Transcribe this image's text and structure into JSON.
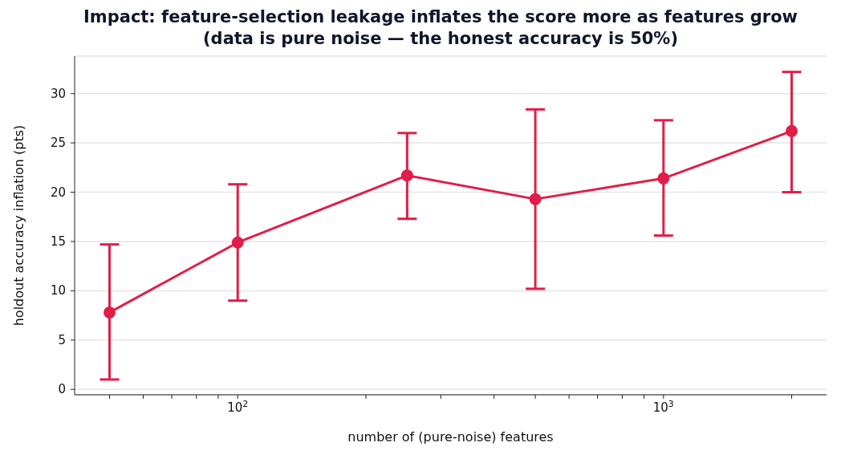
{
  "chart_data": {
    "type": "line",
    "title": "Impact: feature-selection leakage inflates the score more as features grow\n(data is pure noise — the honest accuracy is 50%)",
    "xlabel": "number of (pure-noise) features",
    "ylabel": "holdout accuracy inflation (pts)",
    "log": "x",
    "x": [
      50,
      100,
      250,
      500,
      1000,
      2000
    ],
    "series": [
      {
        "color": "#e11d48",
        "values": [
          7.8,
          14.9,
          21.7,
          19.3,
          21.4,
          26.2
        ],
        "errors": [
          [
            1.0,
            14.7
          ],
          [
            9.0,
            20.8
          ],
          [
            17.3,
            26.0
          ],
          [
            10.2,
            28.4
          ],
          [
            15.6,
            27.3
          ],
          [
            20.0,
            32.2
          ]
        ]
      }
    ],
    "xlim": [
      41.4,
      2415
    ],
    "ylim": [
      -0.55,
      33.8
    ],
    "xticks": [
      {
        "value": 50,
        "label": null
      },
      {
        "value": 60,
        "label": null
      },
      {
        "value": 70,
        "label": null
      },
      {
        "value": 80,
        "label": null
      },
      {
        "value": 90,
        "label": null
      },
      {
        "value": 100,
        "label": "10$^{2}$"
      },
      {
        "value": 200,
        "label": null
      },
      {
        "value": 300,
        "label": null
      },
      {
        "value": 400,
        "label": null
      },
      {
        "value": 500,
        "label": null
      },
      {
        "value": 600,
        "label": null
      },
      {
        "value": 700,
        "label": null
      },
      {
        "value": 800,
        "label": null
      },
      {
        "value": 900,
        "label": null
      },
      {
        "value": 1000,
        "label": "10$^{3}$"
      },
      {
        "value": 2000,
        "label": null
      }
    ],
    "yticks": [
      0,
      5,
      10,
      15,
      20,
      25,
      30
    ],
    "grid": "y",
    "marker": "circle",
    "line_style": "solid"
  }
}
